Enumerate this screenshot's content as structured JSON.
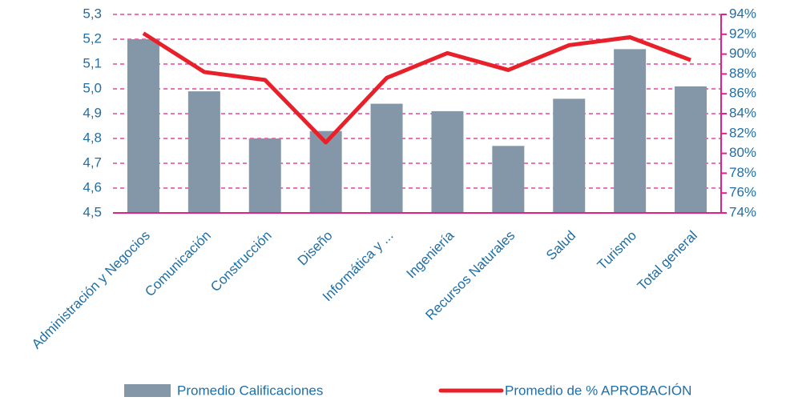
{
  "chart_data": {
    "type": "bar_line",
    "categories": [
      "Administración y Negocios",
      "Comunicación",
      "Construcción",
      "Diseño",
      "Informática y ...",
      "Ingeniería",
      "Recursos Naturales",
      "Salud",
      "Turismo",
      "Total general"
    ],
    "series": [
      {
        "name": "Promedio Calificaciones",
        "color": "#8497a9",
        "type": "bar",
        "values": [
          5.2,
          4.99,
          4.8,
          4.83,
          4.94,
          4.91,
          4.77,
          4.96,
          5.16,
          5.01
        ]
      },
      {
        "name": "Promedio de % APROBACIÓN",
        "color": "#e8202a",
        "type": "line",
        "axis": "y2",
        "values": [
          92.1,
          88.2,
          87.4,
          81.1,
          87.6,
          90.1,
          88.4,
          90.9,
          91.7,
          89.4
        ]
      }
    ],
    "ylim": [
      4.5,
      5.3
    ],
    "yticks": [
      {
        "value": 4.5,
        "label": "4,5"
      },
      {
        "value": 4.6,
        "label": "4,6"
      },
      {
        "value": 4.7,
        "label": "4,7"
      },
      {
        "value": 4.8,
        "label": "4,8"
      },
      {
        "value": 4.9,
        "label": "4,9"
      },
      {
        "value": 5.0,
        "label": "5,0"
      },
      {
        "value": 5.1,
        "label": "5,1"
      },
      {
        "value": 5.2,
        "label": "5,2"
      },
      {
        "value": 5.3,
        "label": "5,3"
      }
    ],
    "y2lim": [
      74,
      94
    ],
    "y2ticks": [
      {
        "value": 74,
        "label": "74%"
      },
      {
        "value": 76,
        "label": "76%"
      },
      {
        "value": 78,
        "label": "78%"
      },
      {
        "value": 80,
        "label": "80%"
      },
      {
        "value": 82,
        "label": "82%"
      },
      {
        "value": 84,
        "label": "84%"
      },
      {
        "value": 86,
        "label": "86%"
      },
      {
        "value": 88,
        "label": "88%"
      },
      {
        "value": 90,
        "label": "90%"
      },
      {
        "value": 92,
        "label": "92%"
      },
      {
        "value": 94,
        "label": "94%"
      }
    ],
    "grid": true,
    "legend": "bottom"
  }
}
